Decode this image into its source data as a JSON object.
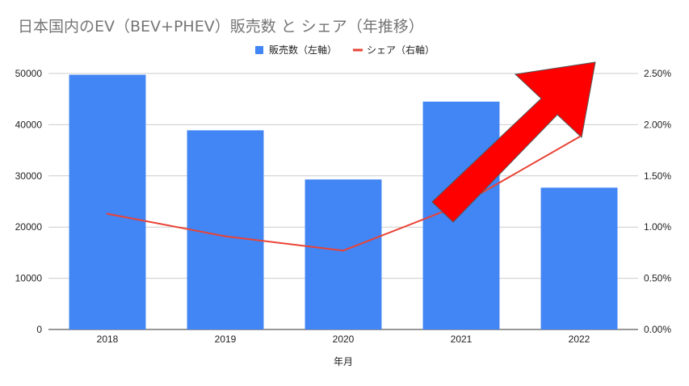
{
  "chart_data": {
    "type": "bar",
    "title": "日本国内のEV（BEV+PHEV）販売数 と シェア（年推移）",
    "xlabel": "年月",
    "categories": [
      "2018",
      "2019",
      "2020",
      "2021",
      "2022"
    ],
    "series": [
      {
        "name": "販売数（左軸）",
        "type": "bar",
        "axis": "left",
        "color": "#4285f4",
        "values": [
          49750,
          38900,
          29300,
          44500,
          27700
        ]
      },
      {
        "name": "シェア（右軸）",
        "type": "line",
        "axis": "right",
        "color": "#ea4335",
        "values": [
          1.13,
          0.91,
          0.77,
          1.22,
          1.88
        ]
      }
    ],
    "left_axis": {
      "ticks": [
        "0",
        "10000",
        "20000",
        "30000",
        "40000",
        "50000"
      ],
      "ylim": [
        0,
        50000
      ]
    },
    "right_axis": {
      "ticks": [
        "0.00%",
        "0.50%",
        "1.00%",
        "1.50%",
        "2.00%",
        "2.50%"
      ],
      "ylim": [
        0,
        2.5
      ],
      "unit": "%"
    },
    "grid": true,
    "legend_position": "top-center",
    "annotation": {
      "shape": "arrow",
      "color": "#ff0000",
      "direction": "up-right"
    }
  }
}
